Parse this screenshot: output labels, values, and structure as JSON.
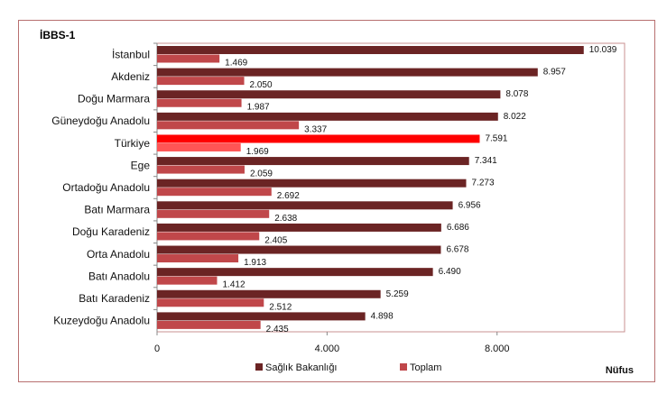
{
  "chart_data": {
    "type": "bar",
    "orientation": "horizontal",
    "title": "İBBS-1",
    "xlabel": "Nüfus",
    "ylabel": "",
    "xlim": [
      0,
      11000
    ],
    "xticks": [
      0,
      4000,
      8000
    ],
    "xtick_labels": [
      "0",
      "4.000",
      "8.000"
    ],
    "grid": false,
    "legend_position": "bottom",
    "categories": [
      "İstanbul",
      "Akdeniz",
      "Doğu Marmara",
      "Güneydoğu Anadolu",
      "Türkiye",
      "Ege",
      "Ortadoğu Anadolu",
      "Batı Marmara",
      "Doğu Karadeniz",
      "Orta Anadolu",
      "Batı Anadolu",
      "Batı Karadeniz",
      "Kuzeydoğu Anadolu"
    ],
    "highlight_category": "Türkiye",
    "series": [
      {
        "name": "Sağlık Bakanlığı",
        "color": "#6b2424",
        "highlight_color": "#ff0000",
        "values": [
          10039,
          8957,
          8078,
          8022,
          7591,
          7341,
          7273,
          6956,
          6686,
          6678,
          6490,
          5259,
          4898
        ],
        "labels": [
          "10.039",
          "8.957",
          "8.078",
          "8.022",
          "7.591",
          "7.341",
          "7.273",
          "6.956",
          "6.686",
          "6.678",
          "6.490",
          "5.259",
          "4.898"
        ]
      },
      {
        "name": "Toplam",
        "color": "#c0474a",
        "highlight_color": "#ff5555",
        "values": [
          1469,
          2050,
          1987,
          3337,
          1969,
          2059,
          2692,
          2638,
          2405,
          1913,
          1412,
          2512,
          2435
        ],
        "labels": [
          "1.469",
          "2.050",
          "1.987",
          "3.337",
          "1.969",
          "2.059",
          "2.692",
          "2.638",
          "2.405",
          "1.913",
          "1.412",
          "2.512",
          "2.435"
        ]
      }
    ]
  }
}
